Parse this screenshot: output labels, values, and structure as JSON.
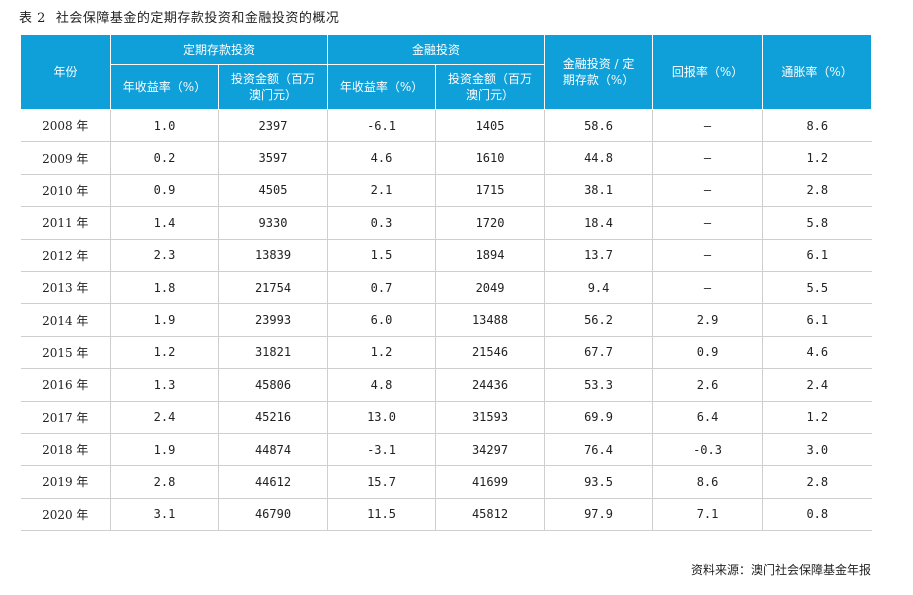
{
  "caption": {
    "number": "表 2",
    "title": "社会保障基金的定期存款投资和金融投资的概况"
  },
  "headers": {
    "year": "年份",
    "deposit_group": "定期存款投资",
    "deposit_rate": "年收益率（%）",
    "deposit_amount": "投资金额（百万澳门元）",
    "finance_group": "金融投资",
    "finance_rate": "年收益率（%）",
    "finance_amount": "投资金额（百万澳门元）",
    "ratio": "金融投资 / 定期存款（%）",
    "return_rate": "回报率（%）",
    "inflation": "通胀率（%）"
  },
  "rows": [
    {
      "year": "2008 年",
      "dep_rate": "1.0",
      "dep_amt": "2397",
      "fin_rate": "-6.1",
      "fin_amt": "1405",
      "ratio": "58.6",
      "ret": "—",
      "infl": "8.6"
    },
    {
      "year": "2009 年",
      "dep_rate": "0.2",
      "dep_amt": "3597",
      "fin_rate": "4.6",
      "fin_amt": "1610",
      "ratio": "44.8",
      "ret": "—",
      "infl": "1.2"
    },
    {
      "year": "2010 年",
      "dep_rate": "0.9",
      "dep_amt": "4505",
      "fin_rate": "2.1",
      "fin_amt": "1715",
      "ratio": "38.1",
      "ret": "—",
      "infl": "2.8"
    },
    {
      "year": "2011 年",
      "dep_rate": "1.4",
      "dep_amt": "9330",
      "fin_rate": "0.3",
      "fin_amt": "1720",
      "ratio": "18.4",
      "ret": "—",
      "infl": "5.8"
    },
    {
      "year": "2012 年",
      "dep_rate": "2.3",
      "dep_amt": "13839",
      "fin_rate": "1.5",
      "fin_amt": "1894",
      "ratio": "13.7",
      "ret": "—",
      "infl": "6.1"
    },
    {
      "year": "2013 年",
      "dep_rate": "1.8",
      "dep_amt": "21754",
      "fin_rate": "0.7",
      "fin_amt": "2049",
      "ratio": "9.4",
      "ret": "—",
      "infl": "5.5"
    },
    {
      "year": "2014 年",
      "dep_rate": "1.9",
      "dep_amt": "23993",
      "fin_rate": "6.0",
      "fin_amt": "13488",
      "ratio": "56.2",
      "ret": "2.9",
      "infl": "6.1"
    },
    {
      "year": "2015 年",
      "dep_rate": "1.2",
      "dep_amt": "31821",
      "fin_rate": "1.2",
      "fin_amt": "21546",
      "ratio": "67.7",
      "ret": "0.9",
      "infl": "4.6"
    },
    {
      "year": "2016 年",
      "dep_rate": "1.3",
      "dep_amt": "45806",
      "fin_rate": "4.8",
      "fin_amt": "24436",
      "ratio": "53.3",
      "ret": "2.6",
      "infl": "2.4"
    },
    {
      "year": "2017 年",
      "dep_rate": "2.4",
      "dep_amt": "45216",
      "fin_rate": "13.0",
      "fin_amt": "31593",
      "ratio": "69.9",
      "ret": "6.4",
      "infl": "1.2"
    },
    {
      "year": "2018 年",
      "dep_rate": "1.9",
      "dep_amt": "44874",
      "fin_rate": "-3.1",
      "fin_amt": "34297",
      "ratio": "76.4",
      "ret": "-0.3",
      "infl": "3.0"
    },
    {
      "year": "2019 年",
      "dep_rate": "2.8",
      "dep_amt": "44612",
      "fin_rate": "15.7",
      "fin_amt": "41699",
      "ratio": "93.5",
      "ret": "8.6",
      "infl": "2.8"
    },
    {
      "year": "2020 年",
      "dep_rate": "3.1",
      "dep_amt": "46790",
      "fin_rate": "11.5",
      "fin_amt": "45812",
      "ratio": "97.9",
      "ret": "7.1",
      "infl": "0.8"
    }
  ],
  "source": "资料来源：澳门社会保障基金年报",
  "colors": {
    "header_bg": "#0f9fd9",
    "header_text": "#ffffff",
    "rule": "#cfcfcf"
  }
}
